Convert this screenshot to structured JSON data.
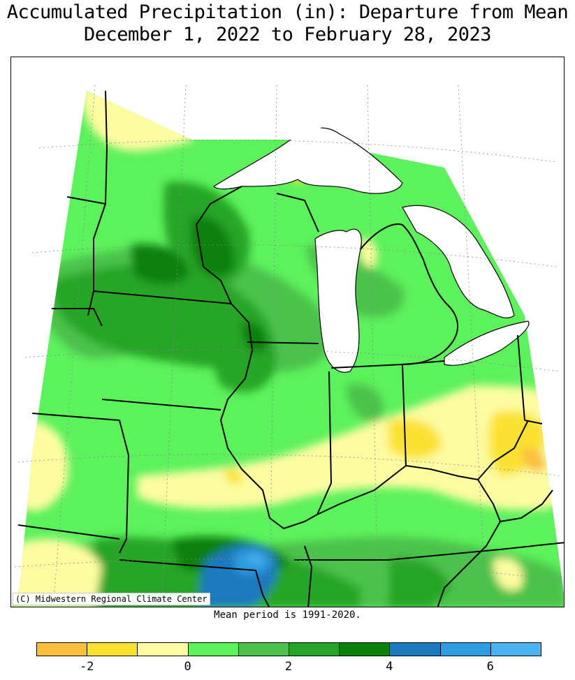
{
  "title": {
    "line1": "Accumulated Precipitation (in): Departure from Mean",
    "line2": "December 1, 2022 to February 28, 2023"
  },
  "map": {
    "region": "Upper Midwest / Great Lakes",
    "credit": "(C) Midwestern Regional Climate Center",
    "mean_period": "Mean period is 1991-2020."
  },
  "legend": {
    "colors": [
      "#fbbf3c",
      "#fbe231",
      "#fdfca0",
      "#5cf25c",
      "#4cc24c",
      "#26a526",
      "#0a800a",
      "#1c79bd",
      "#2d9de0",
      "#4cb2f2"
    ],
    "tick_labels": [
      "-2",
      "0",
      "2",
      "4",
      "6"
    ],
    "tick_values": [
      -2,
      0,
      2,
      4,
      6
    ],
    "min": -3,
    "max": 7,
    "step": 1
  }
}
